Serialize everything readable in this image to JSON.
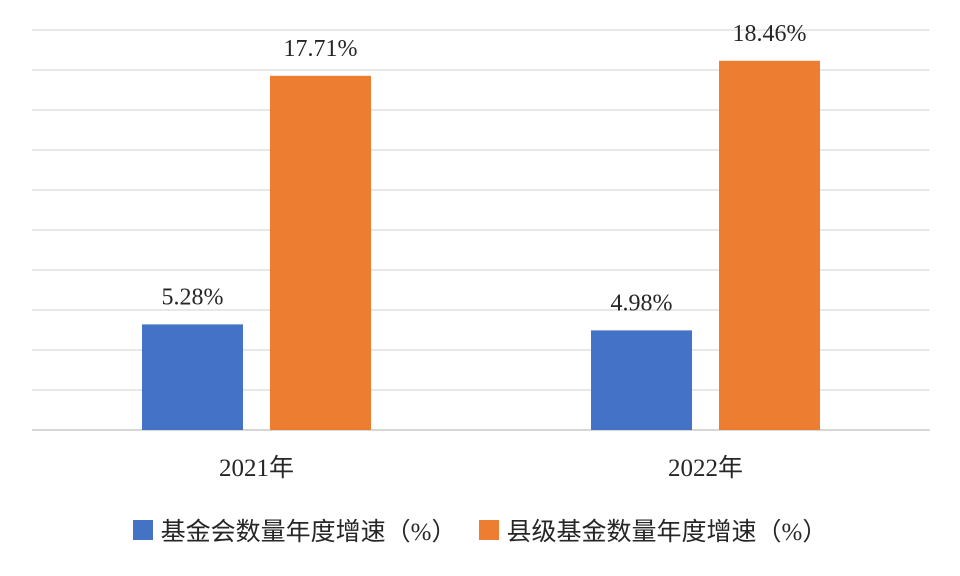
{
  "chart_data": {
    "type": "bar",
    "categories": [
      "2021年",
      "2022年"
    ],
    "series": [
      {
        "name": "基金会数量年度增速（%）",
        "values": [
          5.28,
          4.98
        ],
        "labels": [
          "5.28%",
          "4.98%"
        ],
        "color": "#4472C4"
      },
      {
        "name": "县级基金数量年度增速（%）",
        "values": [
          17.71,
          18.46
        ],
        "labels": [
          "17.71%",
          "18.46%"
        ],
        "color": "#ED7D31"
      }
    ],
    "ylim": [
      0,
      20
    ],
    "y_gridline_step": 2,
    "grid": true,
    "y_tick_labels_shown": false,
    "legend_position": "bottom"
  }
}
